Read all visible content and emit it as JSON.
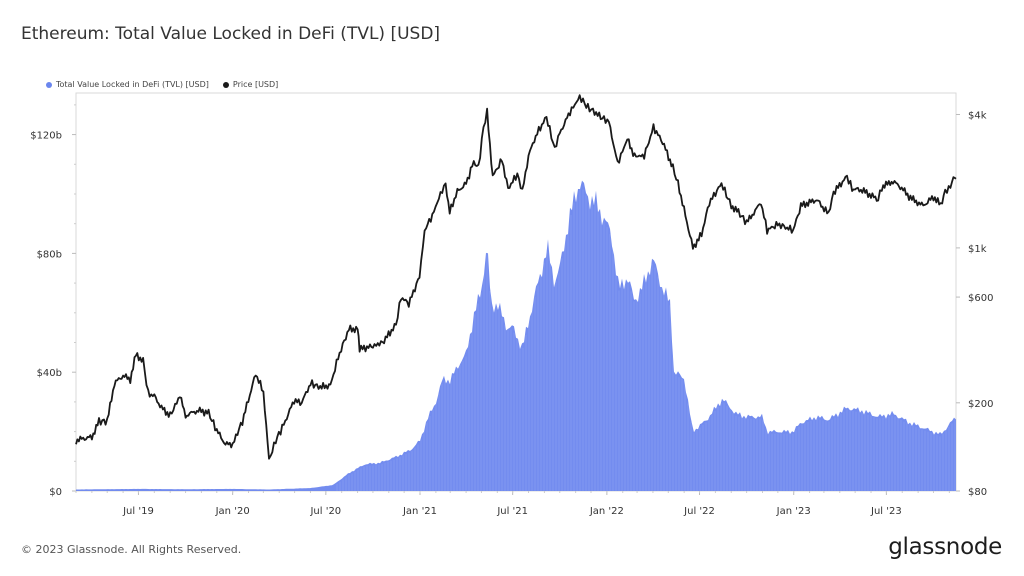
{
  "title": "Ethereum: Total Value Locked in DeFi (TVL) [USD]",
  "footer": "© 2023 Glassnode. All Rights Reserved.",
  "brand": "glassnode",
  "chart_data": {
    "type": "area",
    "title": "Ethereum: Total Value Locked in DeFi (TVL) [USD]",
    "legend_position": "top-left",
    "grid": false,
    "legend": [
      {
        "name": "Total Value Locked in DeFi (TVL) [USD]",
        "color": "#6b86ee"
      },
      {
        "name": "Price [USD]",
        "color": "#1a1a1a"
      }
    ],
    "x_ticks": [
      "Jul '19",
      "Jan '20",
      "Jul '20",
      "Jan '21",
      "Jul '21",
      "Jan '22",
      "Jul '22",
      "Jan '23",
      "Jul '23"
    ],
    "x_tick_dates": [
      "2019-07-01",
      "2020-01-01",
      "2020-07-01",
      "2021-01-01",
      "2021-07-01",
      "2022-01-01",
      "2022-07-01",
      "2023-01-01",
      "2023-07-01"
    ],
    "x_range": [
      "2019-03-01",
      "2023-11-14"
    ],
    "y_left": {
      "ticks": [
        "$0",
        "$40b",
        "$80b",
        "$120b"
      ],
      "values": [
        0,
        40,
        80,
        120
      ],
      "unit": "billion USD",
      "range": [
        0,
        134
      ]
    },
    "y_right": {
      "scale": "log",
      "ticks": [
        "$80",
        "$200",
        "$600",
        "$1k",
        "$4k"
      ],
      "values": [
        80,
        200,
        600,
        1000,
        4000
      ],
      "range": [
        80,
        5000
      ]
    },
    "series": [
      {
        "name": "Total Value Locked in DeFi (TVL) [USD]",
        "axis": "left",
        "style": "area",
        "color": "#6b86ee",
        "points": [
          [
            "2019-03-01",
            0.5
          ],
          [
            "2019-07-01",
            0.7
          ],
          [
            "2019-10-01",
            0.6
          ],
          [
            "2020-01-01",
            0.7
          ],
          [
            "2020-03-12",
            0.5
          ],
          [
            "2020-06-01",
            1.0
          ],
          [
            "2020-07-15",
            2.0
          ],
          [
            "2020-08-15",
            6.0
          ],
          [
            "2020-09-15",
            9.0
          ],
          [
            "2020-10-15",
            9.5
          ],
          [
            "2020-11-15",
            11.5
          ],
          [
            "2020-12-15",
            14.0
          ],
          [
            "2021-01-01",
            17.0
          ],
          [
            "2021-01-15",
            24.0
          ],
          [
            "2021-02-01",
            30.0
          ],
          [
            "2021-02-15",
            38.0
          ],
          [
            "2021-03-01",
            37.0
          ],
          [
            "2021-03-15",
            42.0
          ],
          [
            "2021-04-01",
            46.0
          ],
          [
            "2021-04-15",
            58.0
          ],
          [
            "2021-05-01",
            68.0
          ],
          [
            "2021-05-12",
            83.0
          ],
          [
            "2021-05-20",
            62.0
          ],
          [
            "2021-06-01",
            63.0
          ],
          [
            "2021-06-20",
            55.0
          ],
          [
            "2021-07-01",
            55.0
          ],
          [
            "2021-07-20",
            48.0
          ],
          [
            "2021-08-01",
            57.0
          ],
          [
            "2021-08-15",
            67.0
          ],
          [
            "2021-09-01",
            78.0
          ],
          [
            "2021-09-07",
            82.0
          ],
          [
            "2021-09-21",
            70.0
          ],
          [
            "2021-10-01",
            75.0
          ],
          [
            "2021-10-15",
            88.0
          ],
          [
            "2021-11-01",
            100.0
          ],
          [
            "2021-11-10",
            104.0
          ],
          [
            "2021-11-25",
            99.0
          ],
          [
            "2021-12-10",
            97.0
          ],
          [
            "2021-12-31",
            90.0
          ],
          [
            "2022-01-10",
            86.0
          ],
          [
            "2022-01-24",
            68.0
          ],
          [
            "2022-02-10",
            72.0
          ],
          [
            "2022-02-24",
            64.0
          ],
          [
            "2022-03-10",
            68.0
          ],
          [
            "2022-04-01",
            78.0
          ],
          [
            "2022-04-20",
            68.0
          ],
          [
            "2022-05-05",
            63.0
          ],
          [
            "2022-05-12",
            40.0
          ],
          [
            "2022-06-01",
            38.0
          ],
          [
            "2022-06-18",
            20.0
          ],
          [
            "2022-07-15",
            24.0
          ],
          [
            "2022-08-15",
            31.0
          ],
          [
            "2022-09-10",
            26.0
          ],
          [
            "2022-10-01",
            25.0
          ],
          [
            "2022-11-01",
            25.0
          ],
          [
            "2022-11-10",
            20.0
          ],
          [
            "2022-12-31",
            20.0
          ],
          [
            "2023-01-15",
            23.0
          ],
          [
            "2023-02-15",
            25.0
          ],
          [
            "2023-03-10",
            24.0
          ],
          [
            "2023-04-15",
            28.0
          ],
          [
            "2023-05-15",
            27.0
          ],
          [
            "2023-06-15",
            25.0
          ],
          [
            "2023-07-15",
            26.0
          ],
          [
            "2023-08-15",
            23.0
          ],
          [
            "2023-09-15",
            21.0
          ],
          [
            "2023-10-15",
            19.0
          ],
          [
            "2023-11-14",
            25.0
          ]
        ]
      },
      {
        "name": "Price [USD]",
        "axis": "right",
        "style": "line",
        "color": "#1a1a1a",
        "points": [
          [
            "2019-03-01",
            135
          ],
          [
            "2019-03-15",
            138
          ],
          [
            "2019-04-01",
            140
          ],
          [
            "2019-04-15",
            165
          ],
          [
            "2019-05-01",
            165
          ],
          [
            "2019-05-15",
            245
          ],
          [
            "2019-06-01",
            265
          ],
          [
            "2019-06-15",
            255
          ],
          [
            "2019-06-26",
            330
          ],
          [
            "2019-07-10",
            310
          ],
          [
            "2019-07-20",
            220
          ],
          [
            "2019-08-01",
            215
          ],
          [
            "2019-08-15",
            190
          ],
          [
            "2019-09-01",
            175
          ],
          [
            "2019-09-20",
            215
          ],
          [
            "2019-10-01",
            175
          ],
          [
            "2019-10-26",
            185
          ],
          [
            "2019-11-15",
            180
          ],
          [
            "2019-12-01",
            150
          ],
          [
            "2019-12-18",
            130
          ],
          [
            "2020-01-01",
            130
          ],
          [
            "2020-01-20",
            165
          ],
          [
            "2020-02-15",
            270
          ],
          [
            "2020-03-01",
            225
          ],
          [
            "2020-03-12",
            110
          ],
          [
            "2020-03-25",
            135
          ],
          [
            "2020-04-10",
            160
          ],
          [
            "2020-04-30",
            205
          ],
          [
            "2020-05-15",
            200
          ],
          [
            "2020-06-01",
            245
          ],
          [
            "2020-06-20",
            235
          ],
          [
            "2020-07-10",
            240
          ],
          [
            "2020-07-25",
            320
          ],
          [
            "2020-08-15",
            430
          ],
          [
            "2020-09-01",
            430
          ],
          [
            "2020-09-05",
            350
          ],
          [
            "2020-10-01",
            360
          ],
          [
            "2020-10-20",
            375
          ],
          [
            "2020-11-15",
            450
          ],
          [
            "2020-11-25",
            600
          ],
          [
            "2020-12-10",
            560
          ],
          [
            "2020-12-31",
            740
          ],
          [
            "2021-01-10",
            1200
          ],
          [
            "2021-01-25",
            1400
          ],
          [
            "2021-02-10",
            1750
          ],
          [
            "2021-02-20",
            1950
          ],
          [
            "2021-02-28",
            1450
          ],
          [
            "2021-03-15",
            1800
          ],
          [
            "2021-04-01",
            1950
          ],
          [
            "2021-04-16",
            2450
          ],
          [
            "2021-04-25",
            2300
          ],
          [
            "2021-05-05",
            3500
          ],
          [
            "2021-05-12",
            4100
          ],
          [
            "2021-05-23",
            2100
          ],
          [
            "2021-06-10",
            2500
          ],
          [
            "2021-06-22",
            1850
          ],
          [
            "2021-07-10",
            2150
          ],
          [
            "2021-07-20",
            1800
          ],
          [
            "2021-08-01",
            2600
          ],
          [
            "2021-08-15",
            3200
          ],
          [
            "2021-09-05",
            3900
          ],
          [
            "2021-09-21",
            2800
          ],
          [
            "2021-10-01",
            3300
          ],
          [
            "2021-10-21",
            4100
          ],
          [
            "2021-11-09",
            4800
          ],
          [
            "2021-11-25",
            4300
          ],
          [
            "2021-12-05",
            4150
          ],
          [
            "2021-12-20",
            3900
          ],
          [
            "2022-01-05",
            3700
          ],
          [
            "2022-01-22",
            2400
          ],
          [
            "2022-02-10",
            3100
          ],
          [
            "2022-02-24",
            2600
          ],
          [
            "2022-03-15",
            2600
          ],
          [
            "2022-04-02",
            3500
          ],
          [
            "2022-04-20",
            3000
          ],
          [
            "2022-05-10",
            2300
          ],
          [
            "2022-05-20",
            1950
          ],
          [
            "2022-06-18",
            1000
          ],
          [
            "2022-07-05",
            1150
          ],
          [
            "2022-07-20",
            1600
          ],
          [
            "2022-08-13",
            1950
          ],
          [
            "2022-09-01",
            1550
          ],
          [
            "2022-09-15",
            1450
          ],
          [
            "2022-10-01",
            1300
          ],
          [
            "2022-10-29",
            1600
          ],
          [
            "2022-11-10",
            1200
          ],
          [
            "2022-12-01",
            1280
          ],
          [
            "2022-12-31",
            1200
          ],
          [
            "2023-01-15",
            1550
          ],
          [
            "2023-02-15",
            1650
          ],
          [
            "2023-03-10",
            1420
          ],
          [
            "2023-03-20",
            1780
          ],
          [
            "2023-04-15",
            2100
          ],
          [
            "2023-04-25",
            1850
          ],
          [
            "2023-05-15",
            1820
          ],
          [
            "2023-06-15",
            1650
          ],
          [
            "2023-06-22",
            1880
          ],
          [
            "2023-07-14",
            2000
          ],
          [
            "2023-07-31",
            1860
          ],
          [
            "2023-08-17",
            1680
          ],
          [
            "2023-09-11",
            1550
          ],
          [
            "2023-10-01",
            1700
          ],
          [
            "2023-10-15",
            1560
          ],
          [
            "2023-10-24",
            1800
          ],
          [
            "2023-11-03",
            1880
          ],
          [
            "2023-11-09",
            2100
          ],
          [
            "2023-11-14",
            2050
          ]
        ]
      }
    ]
  }
}
